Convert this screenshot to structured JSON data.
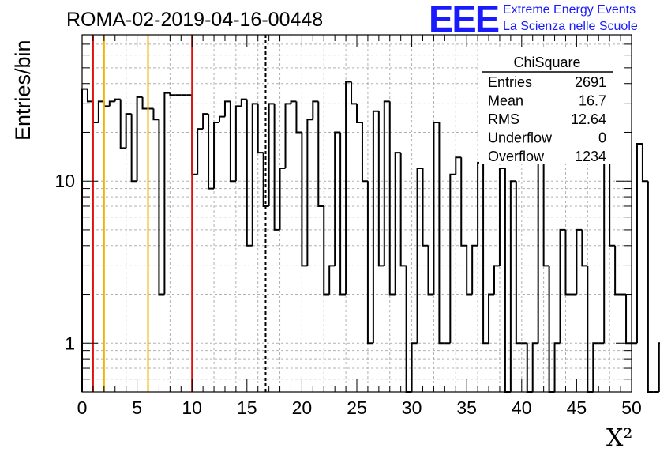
{
  "chart_data": {
    "type": "histogram",
    "title": "ROMA-02-2019-04-16-00448",
    "xlabel": "X²",
    "ylabel": "Entries/bin",
    "xlim": [
      0,
      50
    ],
    "ylim": [
      0.5,
      80
    ],
    "yscale": "log",
    "bin_width": 0.5,
    "x_ticks": [
      "0",
      "5",
      "10",
      "15",
      "20",
      "25",
      "30",
      "35",
      "40",
      "45",
      "50"
    ],
    "x_tick_values": [
      0,
      5,
      10,
      15,
      20,
      25,
      30,
      35,
      40,
      45,
      50
    ],
    "y_ticks": [
      "1",
      "10"
    ],
    "y_tick_values": [
      1,
      10
    ],
    "values": [
      37,
      31,
      23,
      31,
      29,
      31,
      32,
      16,
      26,
      10,
      33,
      28,
      28,
      24,
      2,
      35,
      34,
      34,
      34,
      34,
      11,
      21,
      26,
      9,
      23,
      25,
      31,
      10,
      29,
      32,
      4,
      30,
      15,
      7,
      30,
      5,
      12,
      30,
      31,
      20,
      3,
      24,
      31,
      7,
      2,
      3,
      20,
      2,
      41,
      30,
      23,
      10,
      1,
      27,
      3,
      31,
      2,
      15,
      3,
      0,
      1,
      12,
      4,
      2,
      23,
      1,
      1,
      11,
      14,
      4,
      2,
      4,
      13,
      1,
      2,
      3,
      12,
      0,
      10,
      1,
      1,
      0,
      1,
      27,
      3,
      0,
      1,
      5,
      2,
      2,
      5,
      3,
      0,
      1,
      1,
      17,
      4,
      2,
      2,
      1,
      1,
      17,
      10,
      0,
      0,
      1,
      9,
      1,
      2,
      10,
      11,
      0,
      0,
      10,
      5,
      4,
      5,
      1,
      1,
      3,
      3,
      2,
      1,
      12,
      11,
      11,
      11,
      5,
      2,
      20,
      4,
      0,
      2,
      2,
      2,
      14,
      6,
      3,
      1,
      3,
      1,
      3,
      10,
      2,
      7,
      2,
      7,
      4,
      10,
      5,
      3,
      0,
      0,
      1,
      10,
      3,
      4,
      12,
      10,
      8,
      5,
      0,
      0,
      0,
      1,
      7,
      17,
      1,
      1,
      4,
      10,
      3,
      3,
      9,
      9,
      4,
      17,
      5,
      2,
      1,
      2,
      1,
      3,
      3,
      10,
      1,
      2,
      4,
      6,
      0,
      11,
      4,
      4,
      10,
      8,
      3,
      7,
      4,
      1,
      0,
      0,
      3,
      5,
      3,
      3,
      1,
      5,
      12,
      5,
      6,
      2,
      3,
      6,
      10,
      12,
      10,
      7,
      2,
      2,
      1,
      0,
      7,
      2,
      1,
      2,
      4,
      15,
      4,
      3,
      1,
      3,
      2,
      3,
      2,
      8,
      0,
      0,
      0,
      0,
      1,
      1,
      1,
      2,
      13,
      9,
      4,
      2,
      1,
      3,
      2,
      1,
      2,
      1,
      3,
      16,
      2,
      6,
      3,
      4,
      0,
      3,
      2,
      1,
      0,
      0,
      1,
      1,
      1,
      1,
      3,
      1,
      1,
      1,
      4,
      3,
      3,
      4,
      0,
      1,
      0,
      1,
      1,
      1,
      0,
      1,
      0,
      1,
      1,
      1,
      1,
      1,
      1,
      1,
      0,
      0,
      1,
      10,
      10
    ],
    "reference_lines": [
      {
        "x": 1.0,
        "color": "#e01010",
        "style": "solid"
      },
      {
        "x": 2.0,
        "color": "#f0b400",
        "style": "solid"
      },
      {
        "x": 6.0,
        "color": "#f0b400",
        "style": "solid"
      },
      {
        "x": 10.0,
        "color": "#e01010",
        "style": "solid"
      },
      {
        "x": 16.7,
        "color": "#000000",
        "style": "dashed"
      }
    ],
    "stats": {
      "title": "ChiSquare",
      "rows": [
        {
          "label": "Entries",
          "value": "2691"
        },
        {
          "label": "Mean",
          "value": "16.7"
        },
        {
          "label": "RMS",
          "value": "12.64"
        },
        {
          "label": "Underflow",
          "value": "0"
        },
        {
          "label": "Overflow",
          "value": "1234"
        }
      ]
    },
    "legend_placement": "top-right"
  },
  "logo": {
    "letters": "EEE",
    "line1": "Extreme Energy Events",
    "line2": "La Scienza nelle Scuole",
    "color": "#1a1aff"
  }
}
